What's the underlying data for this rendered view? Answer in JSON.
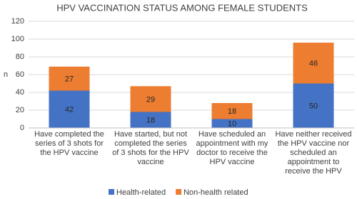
{
  "chart_data": {
    "type": "stacked_bar",
    "title": "HPV VACCINATION STATUS AMONG FEMALE STUDENTS",
    "y_label": "n",
    "categories": [
      "Have completed the series of 3 shots for the HPV vaccine",
      "Have started, but not completed the series of 3 shots for the HPV vaccine",
      "Have scheduled an appointment with my doctor to receive the HPV vaccine",
      "Have neither received the HPV vaccine nor scheduled an appointment to receive the HPV vaccine"
    ],
    "series": [
      {
        "name": "Health-related",
        "color": "#4472c4",
        "values": [
          42,
          18,
          10,
          50
        ]
      },
      {
        "name": "Non-health related",
        "color": "#ed7d31",
        "values": [
          27,
          29,
          18,
          46
        ]
      }
    ],
    "ylim": [
      0,
      120
    ],
    "yticks": [
      0,
      20,
      40,
      60,
      80,
      100,
      120
    ],
    "grid": true,
    "legend": "bottom"
  }
}
